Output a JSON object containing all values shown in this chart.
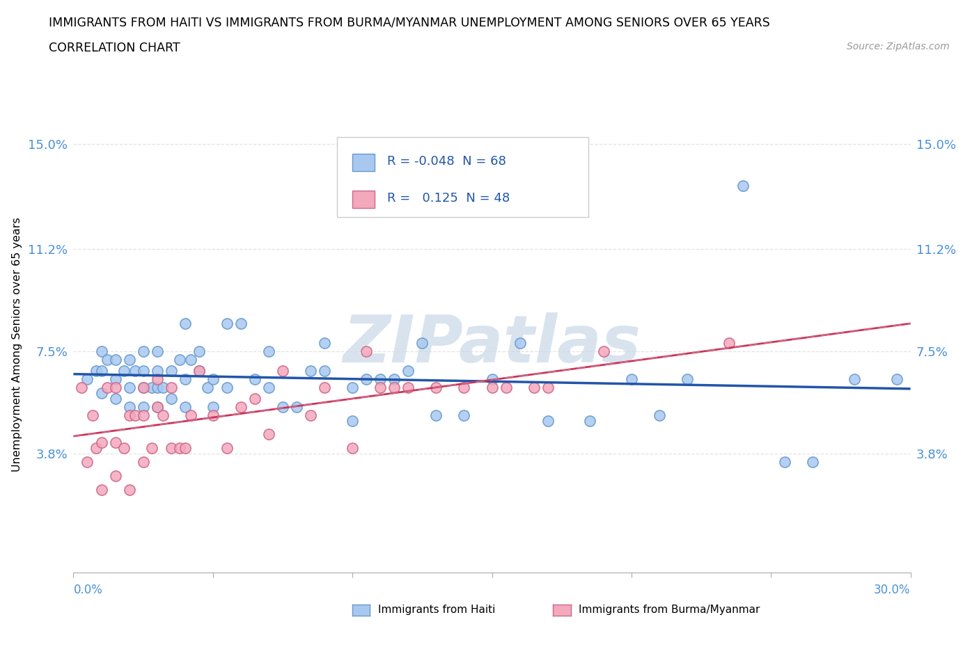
{
  "title_line1": "IMMIGRANTS FROM HAITI VS IMMIGRANTS FROM BURMA/MYANMAR UNEMPLOYMENT AMONG SENIORS OVER 65 YEARS",
  "title_line2": "CORRELATION CHART",
  "source_text": "Source: ZipAtlas.com",
  "ylabel": "Unemployment Among Seniors over 65 years",
  "xlim": [
    0.0,
    0.3
  ],
  "ylim": [
    -0.005,
    0.16
  ],
  "haiti_color": "#a8c8f0",
  "burma_color": "#f4a8bc",
  "haiti_edge_color": "#6699cc",
  "burma_edge_color": "#cc6688",
  "haiti_line_color": "#2255aa",
  "burma_line_dashed_color": "#cc6688",
  "burma_line_solid_color": "#cc3355",
  "legend_r_haiti": "-0.048",
  "legend_n_haiti": "68",
  "legend_r_burma": "0.125",
  "legend_n_burma": "48",
  "haiti_scatter_x": [
    0.005,
    0.008,
    0.01,
    0.01,
    0.01,
    0.012,
    0.015,
    0.015,
    0.015,
    0.018,
    0.02,
    0.02,
    0.02,
    0.022,
    0.025,
    0.025,
    0.025,
    0.025,
    0.028,
    0.03,
    0.03,
    0.03,
    0.03,
    0.032,
    0.035,
    0.035,
    0.038,
    0.04,
    0.04,
    0.04,
    0.042,
    0.045,
    0.045,
    0.048,
    0.05,
    0.05,
    0.055,
    0.055,
    0.06,
    0.065,
    0.07,
    0.07,
    0.075,
    0.08,
    0.085,
    0.09,
    0.09,
    0.1,
    0.1,
    0.105,
    0.11,
    0.115,
    0.12,
    0.125,
    0.13,
    0.14,
    0.15,
    0.16,
    0.17,
    0.185,
    0.2,
    0.21,
    0.22,
    0.24,
    0.255,
    0.265,
    0.28,
    0.295
  ],
  "haiti_scatter_y": [
    0.065,
    0.068,
    0.06,
    0.068,
    0.075,
    0.072,
    0.058,
    0.065,
    0.072,
    0.068,
    0.055,
    0.062,
    0.072,
    0.068,
    0.055,
    0.062,
    0.068,
    0.075,
    0.062,
    0.055,
    0.062,
    0.068,
    0.075,
    0.062,
    0.058,
    0.068,
    0.072,
    0.055,
    0.065,
    0.085,
    0.072,
    0.068,
    0.075,
    0.062,
    0.055,
    0.065,
    0.062,
    0.085,
    0.085,
    0.065,
    0.062,
    0.075,
    0.055,
    0.055,
    0.068,
    0.068,
    0.078,
    0.05,
    0.062,
    0.065,
    0.065,
    0.065,
    0.068,
    0.078,
    0.052,
    0.052,
    0.065,
    0.078,
    0.05,
    0.05,
    0.065,
    0.052,
    0.065,
    0.135,
    0.035,
    0.035,
    0.065,
    0.065
  ],
  "burma_scatter_x": [
    0.003,
    0.005,
    0.007,
    0.008,
    0.01,
    0.01,
    0.012,
    0.015,
    0.015,
    0.015,
    0.018,
    0.02,
    0.02,
    0.022,
    0.025,
    0.025,
    0.025,
    0.028,
    0.03,
    0.03,
    0.032,
    0.035,
    0.035,
    0.038,
    0.04,
    0.042,
    0.045,
    0.05,
    0.055,
    0.06,
    0.065,
    0.07,
    0.075,
    0.085,
    0.09,
    0.1,
    0.105,
    0.11,
    0.115,
    0.12,
    0.13,
    0.14,
    0.15,
    0.155,
    0.165,
    0.17,
    0.19,
    0.235
  ],
  "burma_scatter_y": [
    0.062,
    0.035,
    0.052,
    0.04,
    0.025,
    0.042,
    0.062,
    0.03,
    0.042,
    0.062,
    0.04,
    0.025,
    0.052,
    0.052,
    0.035,
    0.052,
    0.062,
    0.04,
    0.055,
    0.065,
    0.052,
    0.04,
    0.062,
    0.04,
    0.04,
    0.052,
    0.068,
    0.052,
    0.04,
    0.055,
    0.058,
    0.045,
    0.068,
    0.052,
    0.062,
    0.04,
    0.075,
    0.062,
    0.062,
    0.062,
    0.062,
    0.062,
    0.062,
    0.062,
    0.062,
    0.062,
    0.075,
    0.078
  ],
  "ytick_vals": [
    0.038,
    0.075,
    0.112,
    0.15
  ],
  "ytick_labels": [
    "3.8%",
    "7.5%",
    "11.2%",
    "15.0%"
  ],
  "xtick_vals": [
    0.0,
    0.05,
    0.1,
    0.15,
    0.2,
    0.25,
    0.3
  ],
  "tick_color": "#4a90d9",
  "grid_color": "#dddddd",
  "background_color": "#ffffff",
  "watermark_text": "ZIPatlas",
  "watermark_color": "#c8d8e8"
}
